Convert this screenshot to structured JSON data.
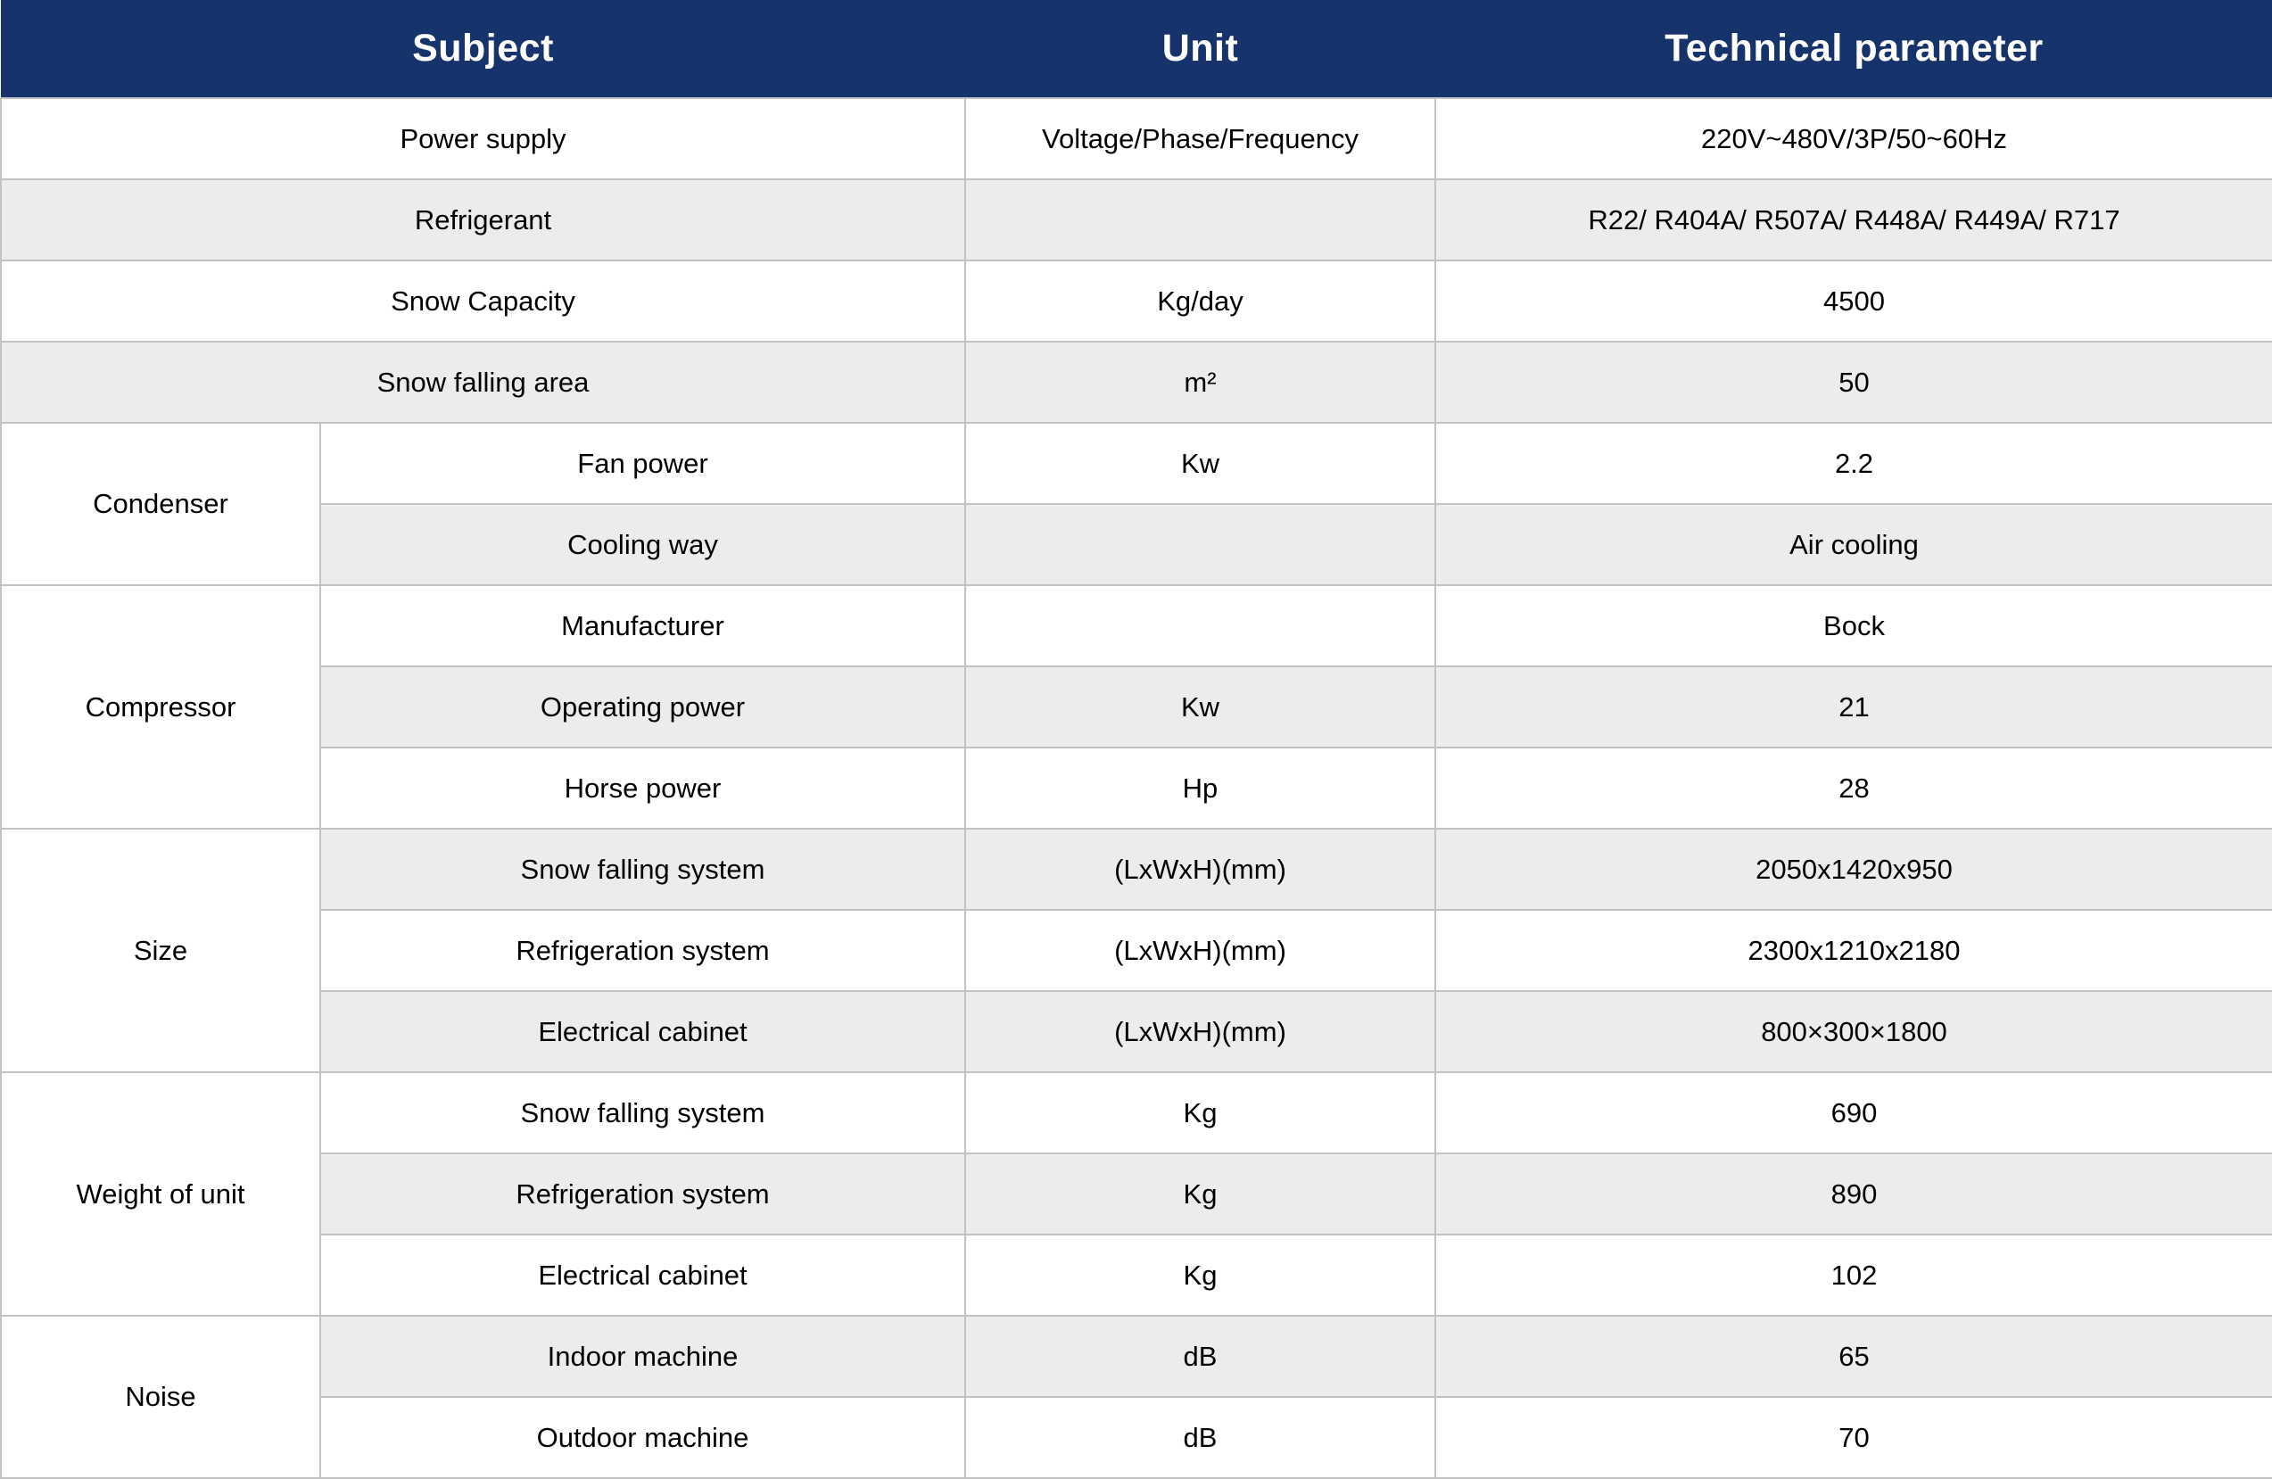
{
  "header": {
    "subject": "Subject",
    "unit": "Unit",
    "parameter": "Technical parameter"
  },
  "rows": [
    {
      "label": "Power supply",
      "unit": "Voltage/Phase/Frequency",
      "value": "220V~480V/3P/50~60Hz"
    },
    {
      "label": "Refrigerant",
      "unit": "",
      "value": "R22/ R404A/ R507A/ R448A/ R449A/ R717"
    },
    {
      "label": "Snow Capacity",
      "unit": "Kg/day",
      "value": "4500"
    },
    {
      "label": "Snow falling area",
      "unit": "m²",
      "value": "50"
    },
    {
      "group": "Condenser",
      "label": "Fan power",
      "unit": "Kw",
      "value": "2.2"
    },
    {
      "label": "Cooling way",
      "unit": "",
      "value": "Air cooling"
    },
    {
      "group": "Compressor",
      "label": "Manufacturer",
      "unit": "",
      "value": "Bock"
    },
    {
      "label": "Operating power",
      "unit": "Kw",
      "value": "21"
    },
    {
      "label": "Horse power",
      "unit": "Hp",
      "value": "28"
    },
    {
      "group": "Size",
      "label": "Snow falling system",
      "unit": "(LxWxH)(mm)",
      "value": "2050x1420x950"
    },
    {
      "label": "Refrigeration system",
      "unit": "(LxWxH)(mm)",
      "value": "2300x1210x2180"
    },
    {
      "label": "Electrical cabinet",
      "unit": "(LxWxH)(mm)",
      "value": "800×300×1800"
    },
    {
      "group": "Weight of unit",
      "label": "Snow falling system",
      "unit": "Kg",
      "value": "690"
    },
    {
      "label": "Refrigeration system",
      "unit": "Kg",
      "value": "890"
    },
    {
      "label": "Electrical cabinet",
      "unit": "Kg",
      "value": "102"
    },
    {
      "group": "Noise",
      "label": "Indoor machine",
      "unit": "dB",
      "value": "65"
    },
    {
      "label": "Outdoor machine",
      "unit": "dB",
      "value": "70"
    }
  ],
  "colors": {
    "header_bg": "#17336b",
    "header_text": "#ffffff",
    "stripe_bg": "#ececec",
    "border": "#c2c2c2",
    "text": "#000000"
  }
}
